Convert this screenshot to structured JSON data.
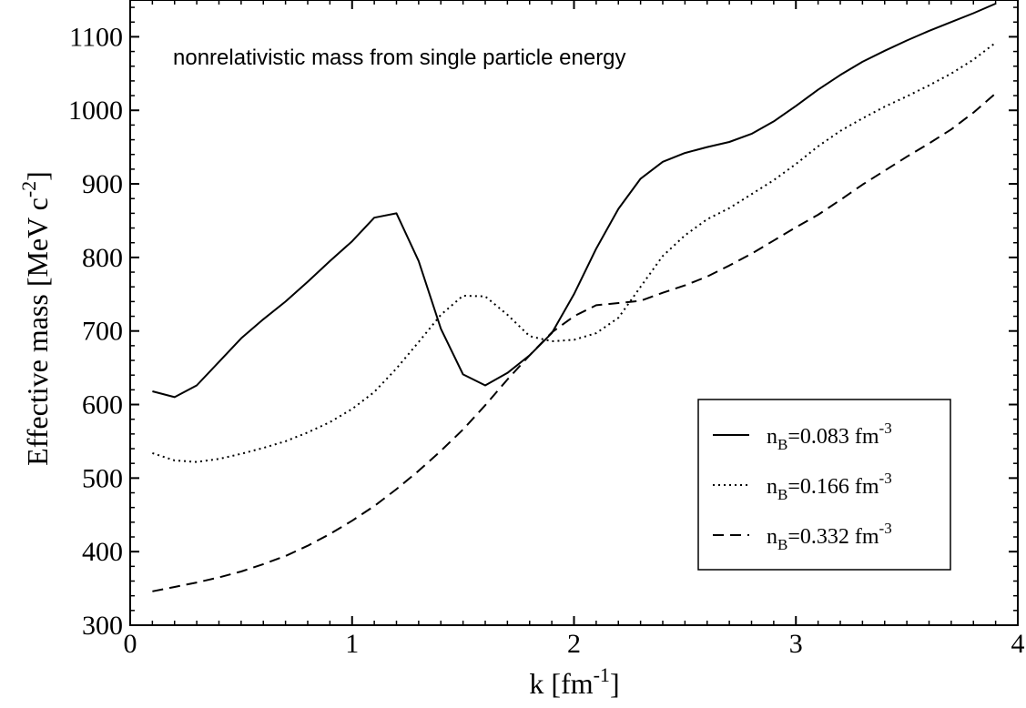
{
  "chart_data": {
    "type": "line",
    "annotation": "nonrelativistic mass from single particle energy",
    "xlabel": {
      "main": "k [fm",
      "sup": "-1",
      "end": "]"
    },
    "ylabel": {
      "main": "Effective mass [MeV c",
      "sup": "-2",
      "end": "]"
    },
    "xlim": [
      0,
      4
    ],
    "ylim": [
      300,
      1150
    ],
    "x_ticks": [
      0,
      1,
      2,
      3,
      4
    ],
    "x_tick_labels": [
      "0",
      "1",
      "2",
      "3",
      "4"
    ],
    "y_ticks": [
      300,
      400,
      500,
      600,
      700,
      800,
      900,
      1000,
      1100
    ],
    "y_tick_labels": [
      "300",
      "400",
      "500",
      "600",
      "700",
      "800",
      "900",
      "1000",
      "1100"
    ],
    "grid": false,
    "legend_position": "bottom-right",
    "series": [
      {
        "name": "n_B=0.083 fm^-3",
        "label": {
          "pre": "n",
          "sub": "B",
          "mid": "=0.083 fm",
          "sup": "-3"
        },
        "dash": "solid",
        "x": [
          0.1,
          0.2,
          0.3,
          0.4,
          0.5,
          0.6,
          0.7,
          0.8,
          0.9,
          1.0,
          1.1,
          1.2,
          1.3,
          1.4,
          1.5,
          1.6,
          1.7,
          1.8,
          1.9,
          2.0,
          2.1,
          2.2,
          2.3,
          2.4,
          2.5,
          2.6,
          2.7,
          2.8,
          2.9,
          3.0,
          3.1,
          3.2,
          3.3,
          3.4,
          3.5,
          3.6,
          3.7,
          3.8,
          3.9
        ],
        "y": [
          618,
          610,
          626,
          658,
          690,
          716,
          740,
          767,
          795,
          822,
          854,
          860,
          795,
          703,
          641,
          626,
          643,
          667,
          697,
          750,
          812,
          866,
          907,
          930,
          942,
          950,
          957,
          968,
          985,
          1006,
          1028,
          1048,
          1066,
          1081,
          1095,
          1108,
          1120,
          1132,
          1145
        ]
      },
      {
        "name": "n_B=0.166 fm^-3",
        "label": {
          "pre": "n",
          "sub": "B",
          "mid": "=0.166 fm",
          "sup": "-3"
        },
        "dash": "dotted",
        "x": [
          0.1,
          0.2,
          0.3,
          0.4,
          0.5,
          0.6,
          0.7,
          0.8,
          0.9,
          1.0,
          1.1,
          1.2,
          1.3,
          1.4,
          1.5,
          1.6,
          1.7,
          1.8,
          1.9,
          2.0,
          2.1,
          2.2,
          2.3,
          2.4,
          2.5,
          2.6,
          2.7,
          2.8,
          2.9,
          3.0,
          3.1,
          3.2,
          3.3,
          3.4,
          3.5,
          3.6,
          3.7,
          3.8,
          3.9
        ],
        "y": [
          534,
          524,
          522,
          526,
          533,
          541,
          550,
          562,
          576,
          594,
          617,
          649,
          685,
          722,
          748,
          747,
          722,
          693,
          686,
          688,
          697,
          718,
          760,
          802,
          830,
          852,
          867,
          886,
          905,
          927,
          951,
          972,
          989,
          1005,
          1019,
          1034,
          1050,
          1069,
          1092
        ]
      },
      {
        "name": "n_B=0.332 fm^-3",
        "label": {
          "pre": "n",
          "sub": "B",
          "mid": "=0.332 fm",
          "sup": "-3"
        },
        "dash": "dashed",
        "x": [
          0.1,
          0.2,
          0.3,
          0.4,
          0.5,
          0.6,
          0.7,
          0.8,
          0.9,
          1.0,
          1.1,
          1.2,
          1.3,
          1.4,
          1.5,
          1.6,
          1.7,
          1.8,
          1.9,
          2.0,
          2.1,
          2.2,
          2.3,
          2.4,
          2.5,
          2.6,
          2.7,
          2.8,
          2.9,
          3.0,
          3.1,
          3.2,
          3.3,
          3.4,
          3.5,
          3.6,
          3.7,
          3.8,
          3.9
        ],
        "y": [
          346,
          352,
          358,
          365,
          373,
          383,
          394,
          408,
          424,
          442,
          462,
          485,
          510,
          537,
          566,
          599,
          634,
          667,
          698,
          720,
          735,
          738,
          741,
          752,
          762,
          774,
          789,
          805,
          823,
          841,
          858,
          878,
          899,
          918,
          937,
          955,
          974,
          997,
          1023
        ]
      }
    ]
  }
}
